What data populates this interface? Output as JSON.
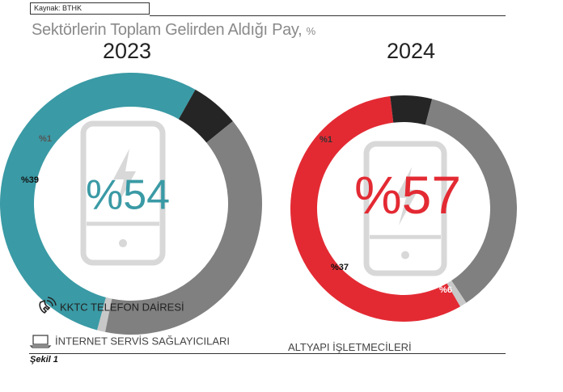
{
  "source": "Kaynak: BTHK",
  "title": "Sektörlerin Toplam Gelirden Aldığı Pay,",
  "title_unit": "%",
  "caption": "Şekil 1",
  "colors": {
    "kktc_2023": "#3a9aa5",
    "kktc_2024": "#e32a33",
    "isp": "#808080",
    "altyapi": "#252525",
    "other": "#c8c8c8",
    "phone_icon": "#d8d8d8"
  },
  "legend": [
    {
      "label": "KKTC TELEFON DAİRESİ",
      "icon": "phone-ring-icon"
    },
    {
      "label": "İNTERNET SERVİS SAĞLAYICILARI",
      "icon": "laptop-icon"
    },
    {
      "label": "ALTYAPI İŞLETMECİLERİ",
      "icon": ""
    }
  ],
  "chart_data": [
    {
      "type": "pie",
      "style": "donut",
      "year": "2023",
      "center_label": "%54",
      "slices": [
        {
          "name": "KKTC TELEFON DAİRESİ",
          "value": 54,
          "label": "%54"
        },
        {
          "name": "ALTYAPI İŞLETMECİLERİ",
          "value": 6,
          "label": "%6"
        },
        {
          "name": "İNTERNET SERVİS SAĞLAYICILARI",
          "value": 39,
          "label": "%39"
        },
        {
          "name": "",
          "value": 1,
          "label": "%1"
        }
      ]
    },
    {
      "type": "pie",
      "style": "donut",
      "year": "2024",
      "center_label": "%57",
      "slices": [
        {
          "name": "KKTC TELEFON DAİRESİ",
          "value": 57,
          "label": "%57"
        },
        {
          "name": "ALTYAPI İŞLETMECİLERİ",
          "value": 6,
          "label": "%6"
        },
        {
          "name": "İNTERNET SERVİS SAĞLAYICILARI",
          "value": 37,
          "label": "%37"
        },
        {
          "name": "",
          "value": 1,
          "label": "%1"
        }
      ]
    }
  ]
}
